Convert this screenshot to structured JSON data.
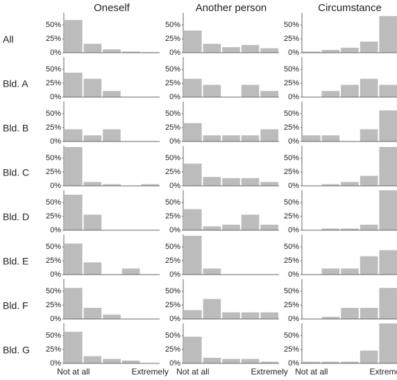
{
  "chart_data": {
    "type": "bar",
    "color": "#bcbcbc",
    "columns": [
      "Oneself",
      "Another person",
      "Circumstance"
    ],
    "categories": [
      "Not at all",
      null,
      null,
      null,
      "Extremely"
    ],
    "ylim": [
      0,
      72
    ],
    "yticks": [
      {
        "value": 0,
        "label": "0%"
      },
      {
        "value": 25,
        "label": "25%"
      },
      {
        "value": 50,
        "label": "50%"
      }
    ],
    "rows": [
      {
        "label": "All",
        "values": [
          [
            59,
            16,
            6,
            2,
            1
          ],
          [
            40,
            16,
            10,
            14,
            8
          ],
          [
            2,
            5,
            9,
            20,
            66
          ]
        ]
      },
      {
        "label": "Bld. A",
        "values": [
          [
            44,
            33,
            11,
            0,
            0
          ],
          [
            33,
            22,
            0,
            22,
            11
          ],
          [
            0,
            11,
            22,
            33,
            22
          ]
        ]
      },
      {
        "label": "Bld. B",
        "values": [
          [
            22,
            11,
            22,
            0,
            0
          ],
          [
            33,
            11,
            11,
            11,
            22
          ],
          [
            11,
            11,
            0,
            22,
            56
          ]
        ]
      },
      {
        "label": "Bld. C",
        "values": [
          [
            70,
            7,
            3,
            0,
            3
          ],
          [
            40,
            16,
            14,
            14,
            7
          ],
          [
            0,
            3,
            7,
            18,
            70
          ]
        ]
      },
      {
        "label": "Bld. D",
        "values": [
          [
            64,
            28,
            0,
            0,
            0
          ],
          [
            38,
            7,
            10,
            28,
            10
          ],
          [
            0,
            3,
            3,
            10,
            72
          ]
        ]
      },
      {
        "label": "Bld. E",
        "values": [
          [
            56,
            22,
            0,
            11,
            0
          ],
          [
            70,
            11,
            0,
            0,
            0
          ],
          [
            0,
            11,
            11,
            33,
            44
          ]
        ]
      },
      {
        "label": "Bld. F",
        "values": [
          [
            56,
            20,
            8,
            0,
            0
          ],
          [
            16,
            36,
            12,
            12,
            12
          ],
          [
            0,
            4,
            20,
            20,
            56
          ]
        ]
      },
      {
        "label": "Bld. G",
        "values": [
          [
            57,
            13,
            8,
            5,
            0
          ],
          [
            48,
            10,
            8,
            8,
            3
          ],
          [
            3,
            3,
            3,
            23,
            72
          ]
        ]
      }
    ]
  }
}
